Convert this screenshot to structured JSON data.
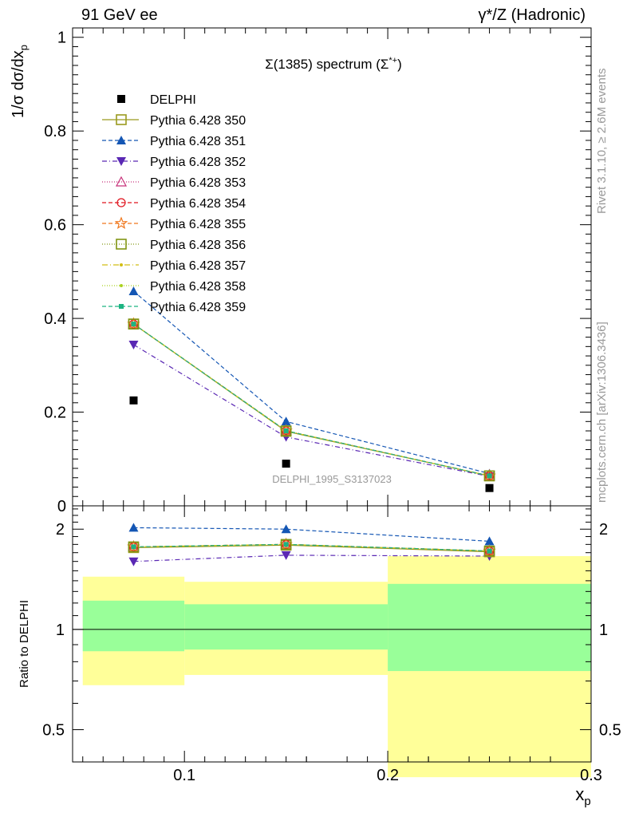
{
  "header": {
    "left": "91 GeV ee",
    "right": "γ*/Z (Hadronic)"
  },
  "side_labels": {
    "rivet": "Rivet 3.1.10, ≥ 2.6M events",
    "mcplots": "mcplots.cern.ch [arXiv:1306.3436]"
  },
  "chart_data": [
    {
      "type": "line",
      "title": "Σ(1385) spectrum (Σ*+)",
      "watermark": "DELPHI_1995_S3137023",
      "ylabel": "1/σ dσ/dx_p",
      "xlabel": "x_p",
      "xlim": [
        0.045,
        0.3
      ],
      "ylim": [
        0,
        1.02
      ],
      "yticks": [
        "0",
        "0.2",
        "0.4",
        "0.6",
        "0.8",
        "1"
      ],
      "legend_position": "top-left",
      "x": [
        0.075,
        0.15,
        0.25
      ],
      "data": {
        "name": "DELPHI",
        "values": [
          0.225,
          0.09,
          0.038
        ],
        "bins": [
          [
            0.05,
            0.1
          ],
          [
            0.1,
            0.2
          ],
          [
            0.2,
            0.3
          ]
        ]
      },
      "series": [
        {
          "name": "Pythia 6.428 350",
          "values": [
            0.388,
            0.159,
            0.064
          ],
          "color": "#9a9a1e",
          "dash": "",
          "marker": "open-square"
        },
        {
          "name": "Pythia 6.428 351",
          "values": [
            0.458,
            0.18,
            0.069
          ],
          "color": "#1456b4",
          "dash": "5,3",
          "marker": "filled-triangle-up"
        },
        {
          "name": "Pythia 6.428 352",
          "values": [
            0.344,
            0.147,
            0.063
          ],
          "color": "#5a28b4",
          "dash": "6,3,1,3",
          "marker": "filled-triangle-down"
        },
        {
          "name": "Pythia 6.428 353",
          "values": [
            0.388,
            0.16,
            0.064
          ],
          "color": "#c8327a",
          "dash": "1,2",
          "marker": "open-triangle"
        },
        {
          "name": "Pythia 6.428 354",
          "values": [
            0.388,
            0.16,
            0.064
          ],
          "color": "#e0141e",
          "dash": "5,3",
          "marker": "open-circle"
        },
        {
          "name": "Pythia 6.428 355",
          "values": [
            0.388,
            0.16,
            0.064
          ],
          "color": "#f0781e",
          "dash": "5,3",
          "marker": "open-star"
        },
        {
          "name": "Pythia 6.428 356",
          "values": [
            0.388,
            0.16,
            0.064
          ],
          "color": "#829614",
          "dash": "1,2",
          "marker": "open-square"
        },
        {
          "name": "Pythia 6.428 357",
          "values": [
            0.388,
            0.16,
            0.064
          ],
          "color": "#d2be14",
          "dash": "7,3,1,3",
          "marker": "small-dot"
        },
        {
          "name": "Pythia 6.428 358",
          "values": [
            0.388,
            0.16,
            0.064
          ],
          "color": "#aad21e",
          "dash": "1,2",
          "marker": "small-dot"
        },
        {
          "name": "Pythia 6.428 359",
          "values": [
            0.388,
            0.16,
            0.064
          ],
          "color": "#1eb482",
          "dash": "5,3",
          "marker": "filled-square"
        }
      ]
    },
    {
      "type": "line",
      "title": "",
      "ylabel": "Ratio to DELPHI",
      "xlabel": "x_p",
      "scale": "log",
      "xlim": [
        0.045,
        0.3
      ],
      "ylim": [
        0.4,
        2.35
      ],
      "yticks": [
        "0.5",
        "1",
        "2"
      ],
      "xticks": [
        "0.1",
        "0.2",
        "0.3"
      ],
      "bands": [
        {
          "x": [
            0.05,
            0.1
          ],
          "green": [
            0.86,
            1.22
          ],
          "yellow": [
            0.68,
            1.44
          ]
        },
        {
          "x": [
            0.1,
            0.2
          ],
          "green": [
            0.87,
            1.19
          ],
          "yellow": [
            0.73,
            1.39
          ]
        },
        {
          "x": [
            0.2,
            0.3
          ],
          "green": [
            0.75,
            1.37
          ],
          "yellow": [
            0.36,
            1.66
          ]
        }
      ],
      "band_colors": {
        "green": "#99ff99",
        "yellow": "#ffff99"
      },
      "x": [
        0.075,
        0.15,
        0.25
      ],
      "series": [
        {
          "name": "Pythia 6.428 350",
          "values": [
            1.76,
            1.79,
            1.71
          ]
        },
        {
          "name": "Pythia 6.428 351",
          "values": [
            2.02,
            2.0,
            1.84
          ]
        },
        {
          "name": "Pythia 6.428 352",
          "values": [
            1.6,
            1.67,
            1.66
          ]
        },
        {
          "name": "Pythia 6.428 353",
          "values": [
            1.77,
            1.8,
            1.72
          ]
        },
        {
          "name": "Pythia 6.428 354",
          "values": [
            1.77,
            1.8,
            1.72
          ]
        },
        {
          "name": "Pythia 6.428 355",
          "values": [
            1.77,
            1.8,
            1.72
          ]
        },
        {
          "name": "Pythia 6.428 356",
          "values": [
            1.77,
            1.8,
            1.72
          ]
        },
        {
          "name": "Pythia 6.428 357",
          "values": [
            1.77,
            1.8,
            1.72
          ]
        },
        {
          "name": "Pythia 6.428 358",
          "values": [
            1.77,
            1.8,
            1.72
          ]
        },
        {
          "name": "Pythia 6.428 359",
          "values": [
            1.77,
            1.8,
            1.72
          ]
        }
      ]
    }
  ]
}
